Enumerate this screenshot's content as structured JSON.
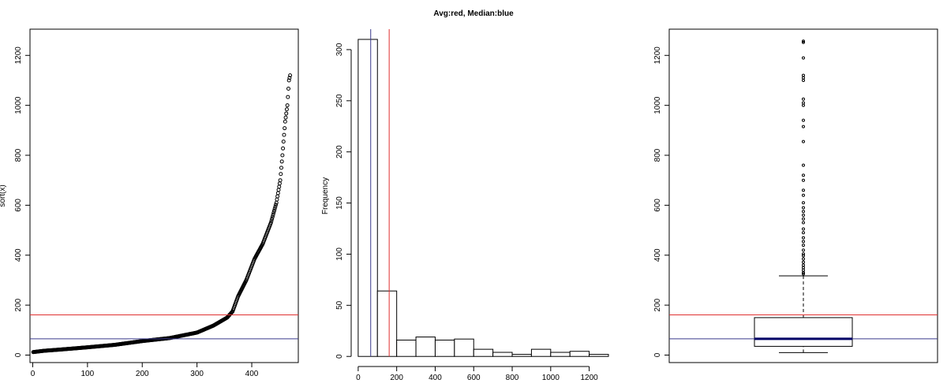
{
  "figure": {
    "title": "Avg:red, Median:blue"
  },
  "stats": {
    "mean": 161,
    "median": 65,
    "mean_color": "#e03030",
    "median_color": "#3a3a8c"
  },
  "chart_data": [
    {
      "type": "scatter",
      "xlabel": "",
      "ylabel": "sort(x)",
      "xlim": [
        -5,
        485
      ],
      "ylim": [
        -30,
        1305
      ],
      "x_ticks": [
        0,
        100,
        200,
        300,
        400
      ],
      "y_ticks": [
        0,
        200,
        400,
        600,
        800,
        1000,
        1200
      ],
      "n_points": 470,
      "sorted_value_profile": [
        [
          1,
          12
        ],
        [
          20,
          17
        ],
        [
          50,
          22
        ],
        [
          100,
          31
        ],
        [
          150,
          41
        ],
        [
          200,
          56
        ],
        [
          250,
          68
        ],
        [
          300,
          90
        ],
        [
          330,
          118
        ],
        [
          355,
          150
        ],
        [
          365,
          175
        ],
        [
          375,
          235
        ],
        [
          390,
          300
        ],
        [
          405,
          385
        ],
        [
          420,
          445
        ],
        [
          435,
          530
        ],
        [
          445,
          610
        ],
        [
          452,
          700
        ],
        [
          456,
          800
        ],
        [
          458,
          855
        ],
        [
          461,
          935
        ],
        [
          465,
          1000
        ],
        [
          468,
          1100
        ],
        [
          470,
          1120
        ],
        [
          471,
          1190
        ],
        [
          472,
          1252
        ],
        [
          473,
          1257
        ]
      ],
      "hlines": [
        {
          "name": "Avg",
          "value": 161,
          "color": "#e03030"
        },
        {
          "name": "Median",
          "value": 65,
          "color": "#3a3a8c"
        }
      ],
      "grid": false,
      "legend": "none"
    },
    {
      "type": "bar",
      "xlabel": "",
      "ylabel": "Frequency",
      "xlim": [
        -20,
        1300
      ],
      "ylim": [
        -6,
        320
      ],
      "x_ticks": [
        0,
        200,
        400,
        600,
        800,
        1000,
        1200
      ],
      "y_ticks": [
        0,
        50,
        100,
        150,
        200,
        250,
        300
      ],
      "bin_edges": [
        0,
        100,
        200,
        300,
        400,
        500,
        600,
        700,
        800,
        900,
        1000,
        1100,
        1200,
        1300
      ],
      "values": [
        310,
        64,
        16,
        19,
        16,
        17,
        7,
        4,
        2,
        7,
        4,
        5,
        2
      ],
      "vlines": [
        {
          "name": "Avg",
          "value": 161,
          "color": "#e03030"
        },
        {
          "name": "Median",
          "value": 65,
          "color": "#3a3a8c"
        }
      ],
      "grid": false,
      "legend": "none"
    },
    {
      "type": "box",
      "xlabel": "",
      "ylabel": "",
      "ylim": [
        -30,
        1305
      ],
      "y_ticks": [
        0,
        200,
        400,
        600,
        800,
        1000,
        1200
      ],
      "box": {
        "lower_whisker": 10,
        "q1": 35,
        "median": 65,
        "q3": 150,
        "upper_whisker": 317
      },
      "outliers": [
        325,
        330,
        340,
        350,
        360,
        372,
        385,
        398,
        405,
        420,
        440,
        455,
        470,
        490,
        505,
        530,
        545,
        560,
        575,
        590,
        610,
        640,
        660,
        700,
        720,
        760,
        855,
        915,
        940,
        1000,
        1010,
        1025,
        1100,
        1110,
        1120,
        1190,
        1252,
        1257
      ],
      "hlines": [
        {
          "name": "Avg",
          "value": 161,
          "color": "#e03030"
        },
        {
          "name": "Median",
          "value": 65,
          "color": "#3a3a8c"
        }
      ],
      "grid": false,
      "legend": "none"
    }
  ]
}
